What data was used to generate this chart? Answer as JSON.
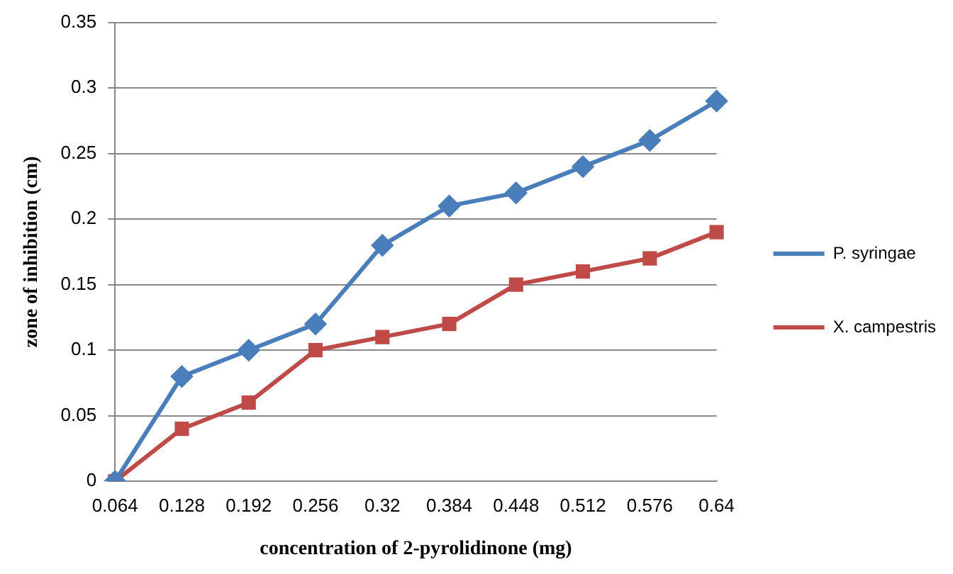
{
  "chart_data": {
    "type": "line",
    "xlabel": "concentration of 2-pyrolidinone (mg)",
    "ylabel": "zone of inhibition (cm)",
    "categories": [
      "0.064",
      "0.128",
      "0.192",
      "0.256",
      "0.32",
      "0.384",
      "0.448",
      "0.512",
      "0.576",
      "0.64"
    ],
    "series": [
      {
        "name": "P. syringae",
        "color": "#4a7ebb",
        "marker": "diamond",
        "values": [
          0,
          0.08,
          0.1,
          0.12,
          0.18,
          0.21,
          0.22,
          0.24,
          0.26,
          0.29
        ]
      },
      {
        "name": "X. campestris",
        "color": "#be4b48",
        "marker": "square",
        "values": [
          0,
          0.04,
          0.06,
          0.1,
          0.11,
          0.12,
          0.15,
          0.16,
          0.17,
          0.19
        ]
      }
    ],
    "ylim": [
      0,
      0.35
    ],
    "yticks": [
      0,
      0.05,
      0.1,
      0.15,
      0.2,
      0.25,
      0.3,
      0.35
    ],
    "grid": "y",
    "legend": "right"
  }
}
